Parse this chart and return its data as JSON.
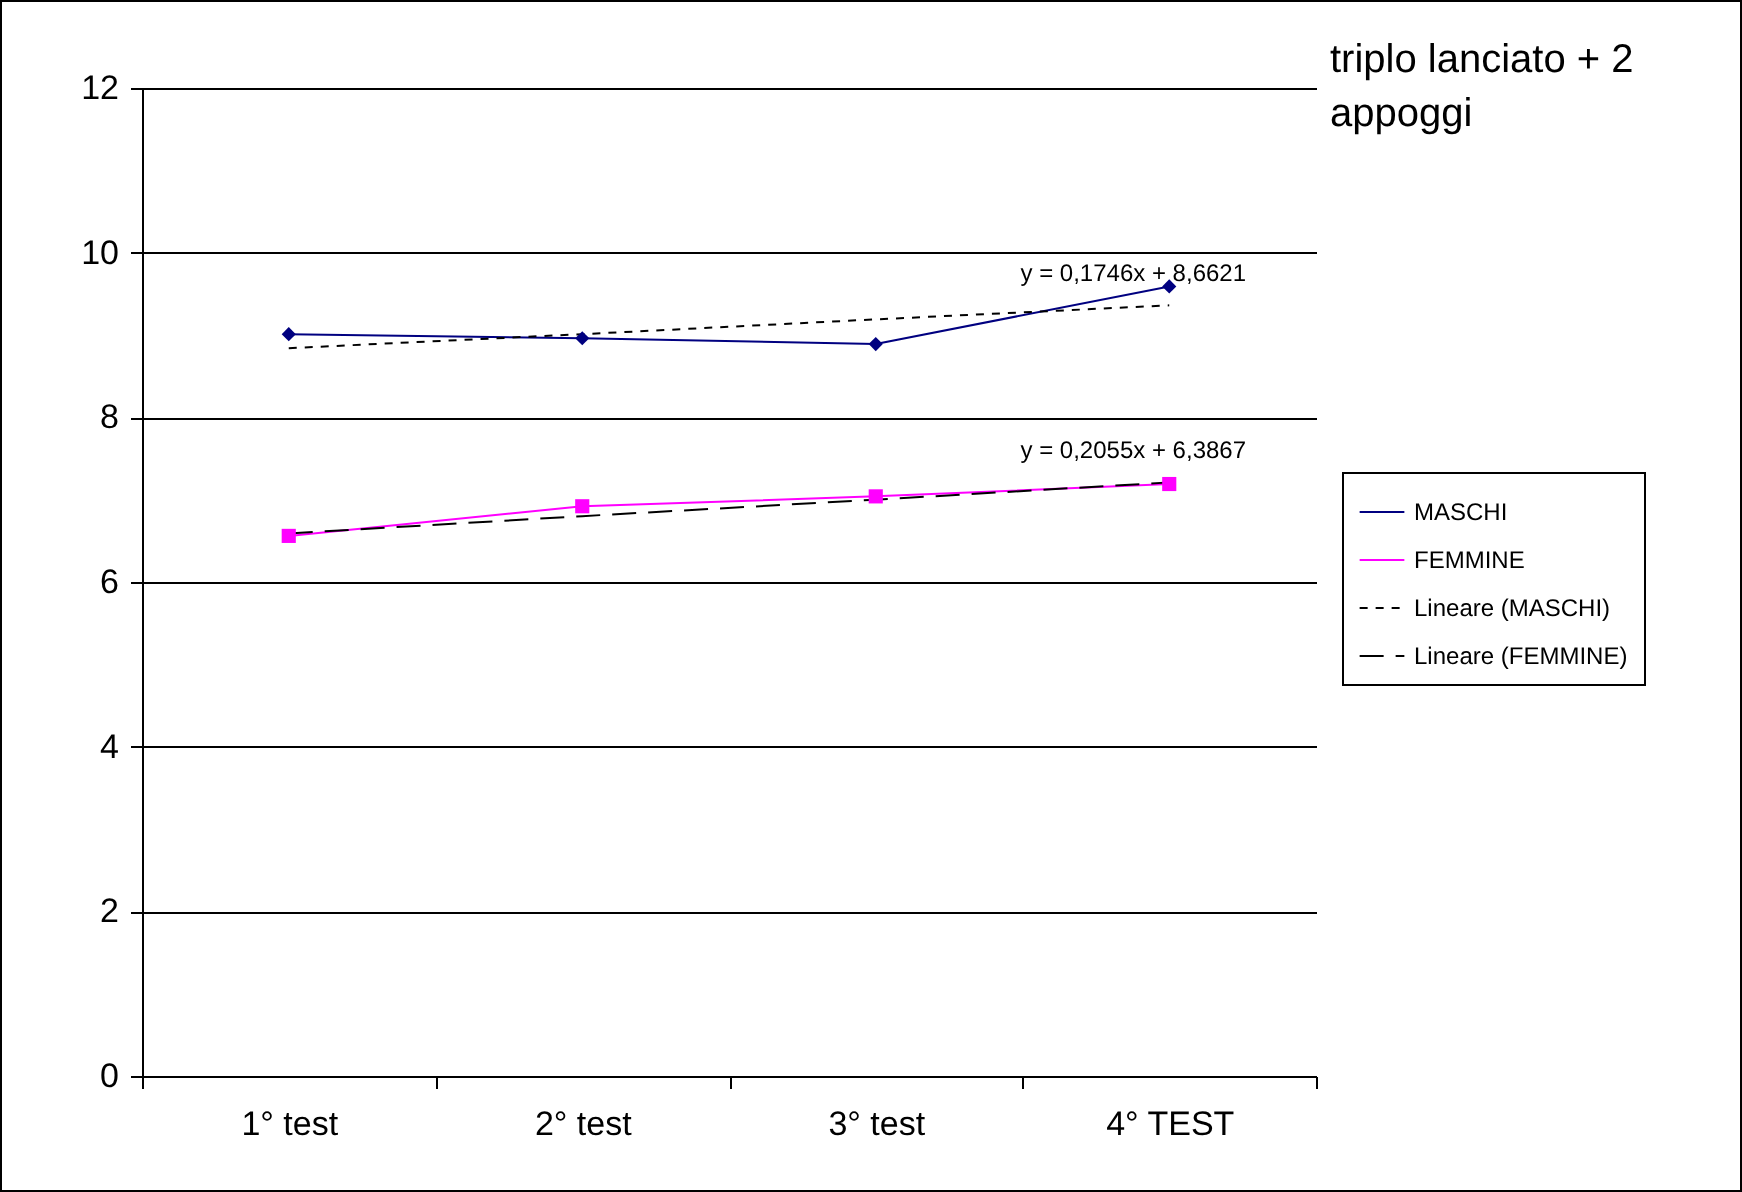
{
  "chart_data": {
    "type": "line",
    "title": "triplo lanciato + 2 appoggi",
    "categories": [
      "1° test",
      "2° test",
      "3° test",
      "4° TEST"
    ],
    "series": [
      {
        "name": "MASCHI",
        "color": "#000080",
        "values": [
          9.01,
          8.96,
          8.89,
          9.59
        ],
        "marker": "diamond",
        "line_style": "solid"
      },
      {
        "name": "FEMMINE",
        "color": "#ff00ff",
        "values": [
          6.56,
          6.92,
          7.04,
          7.19
        ],
        "marker": "square",
        "line_style": "solid"
      },
      {
        "name": "Lineare (MASCHI)",
        "color": "#000000",
        "values": [
          8.84,
          9.01,
          9.19,
          9.36
        ],
        "marker": "none",
        "line_style": "dotted"
      },
      {
        "name": "Lineare (FEMMINE)",
        "color": "#000000",
        "values": [
          6.59,
          6.8,
          7.0,
          7.21
        ],
        "marker": "none",
        "line_style": "dashed"
      }
    ],
    "annotations": [
      "y = 0,1746x + 8,6621",
      "y = 0,2055x + 6,3867"
    ],
    "ylim": [
      0,
      12
    ],
    "yticks": [
      0,
      2,
      4,
      6,
      8,
      10,
      12
    ],
    "grid": "y",
    "legend": "right"
  }
}
